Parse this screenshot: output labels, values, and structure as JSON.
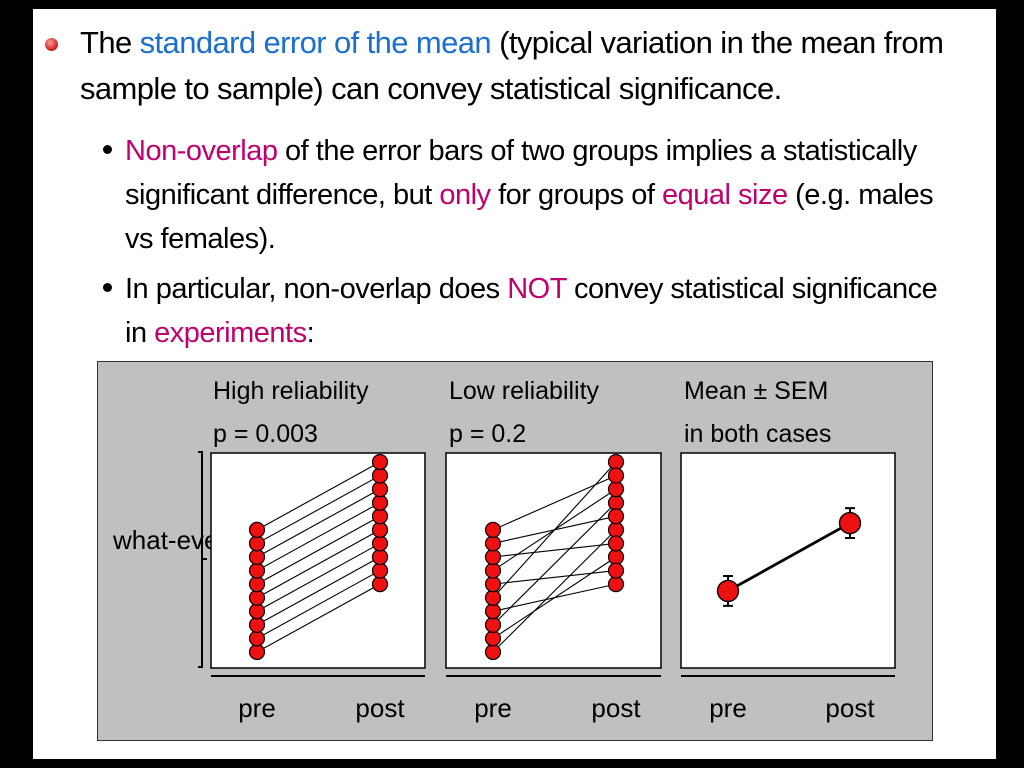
{
  "slide": {
    "bullet1": {
      "t1": "The ",
      "t2": "standard error of the mean",
      "t3": " (typical variation in the mean from sample to sample) can convey statistical significance."
    },
    "sub1": {
      "t1": "Non-overlap",
      "t2": " of the error bars of two groups implies a statistically significant difference, but ",
      "t3": "only",
      "t4": " for groups of ",
      "t5": "equal size",
      "t6": " (e.g. males vs females)."
    },
    "sub2": {
      "t1": "In particular, non-overlap does ",
      "t2": "NOT",
      "t3": " convey statistical significance in ",
      "t4": "experiments",
      "t5": ":"
    }
  },
  "colors": {
    "accent_blue": "#1a6fd1",
    "accent_magenta": "#c0006f",
    "marker_red": "#ee1111",
    "figure_bg": "#c0c0c0"
  },
  "chart_data": [
    {
      "type": "line",
      "title": "High reliability",
      "subtitle": "p = 0.003",
      "categories": [
        "pre",
        "post"
      ],
      "ylabel": "what-ever",
      "pairs": [
        [
          1,
          6
        ],
        [
          2,
          7
        ],
        [
          3,
          8
        ],
        [
          4,
          9
        ],
        [
          5,
          10
        ],
        [
          6,
          11
        ],
        [
          7,
          12
        ],
        [
          8,
          13
        ],
        [
          9,
          14
        ],
        [
          10,
          15
        ]
      ]
    },
    {
      "type": "line",
      "title": "Low reliability",
      "subtitle": "p = 0.2",
      "categories": [
        "pre",
        "post"
      ],
      "pairs": [
        [
          1,
          10
        ],
        [
          2,
          8
        ],
        [
          3,
          12
        ],
        [
          4,
          6
        ],
        [
          5,
          15
        ],
        [
          6,
          7
        ],
        [
          7,
          13
        ],
        [
          8,
          9
        ],
        [
          9,
          11
        ],
        [
          10,
          14
        ]
      ]
    },
    {
      "type": "line",
      "title": "Mean ± SEM",
      "subtitle": "in both cases",
      "categories": [
        "pre",
        "post"
      ],
      "means": [
        5.5,
        10.5
      ],
      "sem": [
        1.1,
        1.1
      ]
    }
  ]
}
